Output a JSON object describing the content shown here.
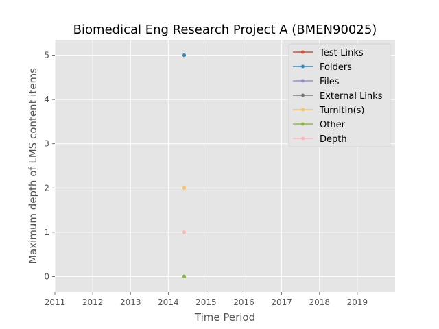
{
  "chart_data": {
    "type": "line",
    "title": "Biomedical Eng Research Project A (BMEN90025)",
    "xlabel": "Time Period",
    "ylabel": "Maximum depth of LMS content items",
    "xlim": [
      2011,
      2020
    ],
    "ylim": [
      -0.35,
      5.35
    ],
    "x_ticks": [
      "2011",
      "2012",
      "2013",
      "2014",
      "2015",
      "2016",
      "2017",
      "2018",
      "2019"
    ],
    "y_ticks": [
      "0",
      "1",
      "2",
      "3",
      "4",
      "5"
    ],
    "grid": true,
    "legend_position": "top-right",
    "series": [
      {
        "name": "Test-Links",
        "color": "#e24a33",
        "points": [
          {
            "x": 2014.42,
            "y": 0
          }
        ]
      },
      {
        "name": "Folders",
        "color": "#348abd",
        "points": [
          {
            "x": 2014.42,
            "y": 5
          }
        ]
      },
      {
        "name": "Files",
        "color": "#988ed5",
        "points": [
          {
            "x": 2014.42,
            "y": 0
          }
        ]
      },
      {
        "name": "External Links",
        "color": "#777777",
        "points": [
          {
            "x": 2014.42,
            "y": 0
          }
        ]
      },
      {
        "name": "TurnItIn(s)",
        "color": "#fbc15e",
        "points": [
          {
            "x": 2014.42,
            "y": 2
          }
        ]
      },
      {
        "name": "Other",
        "color": "#8eba42",
        "points": [
          {
            "x": 2014.42,
            "y": 0
          }
        ]
      },
      {
        "name": "Depth",
        "color": "#ffb5b8",
        "points": [
          {
            "x": 2014.42,
            "y": 1
          }
        ]
      }
    ]
  }
}
